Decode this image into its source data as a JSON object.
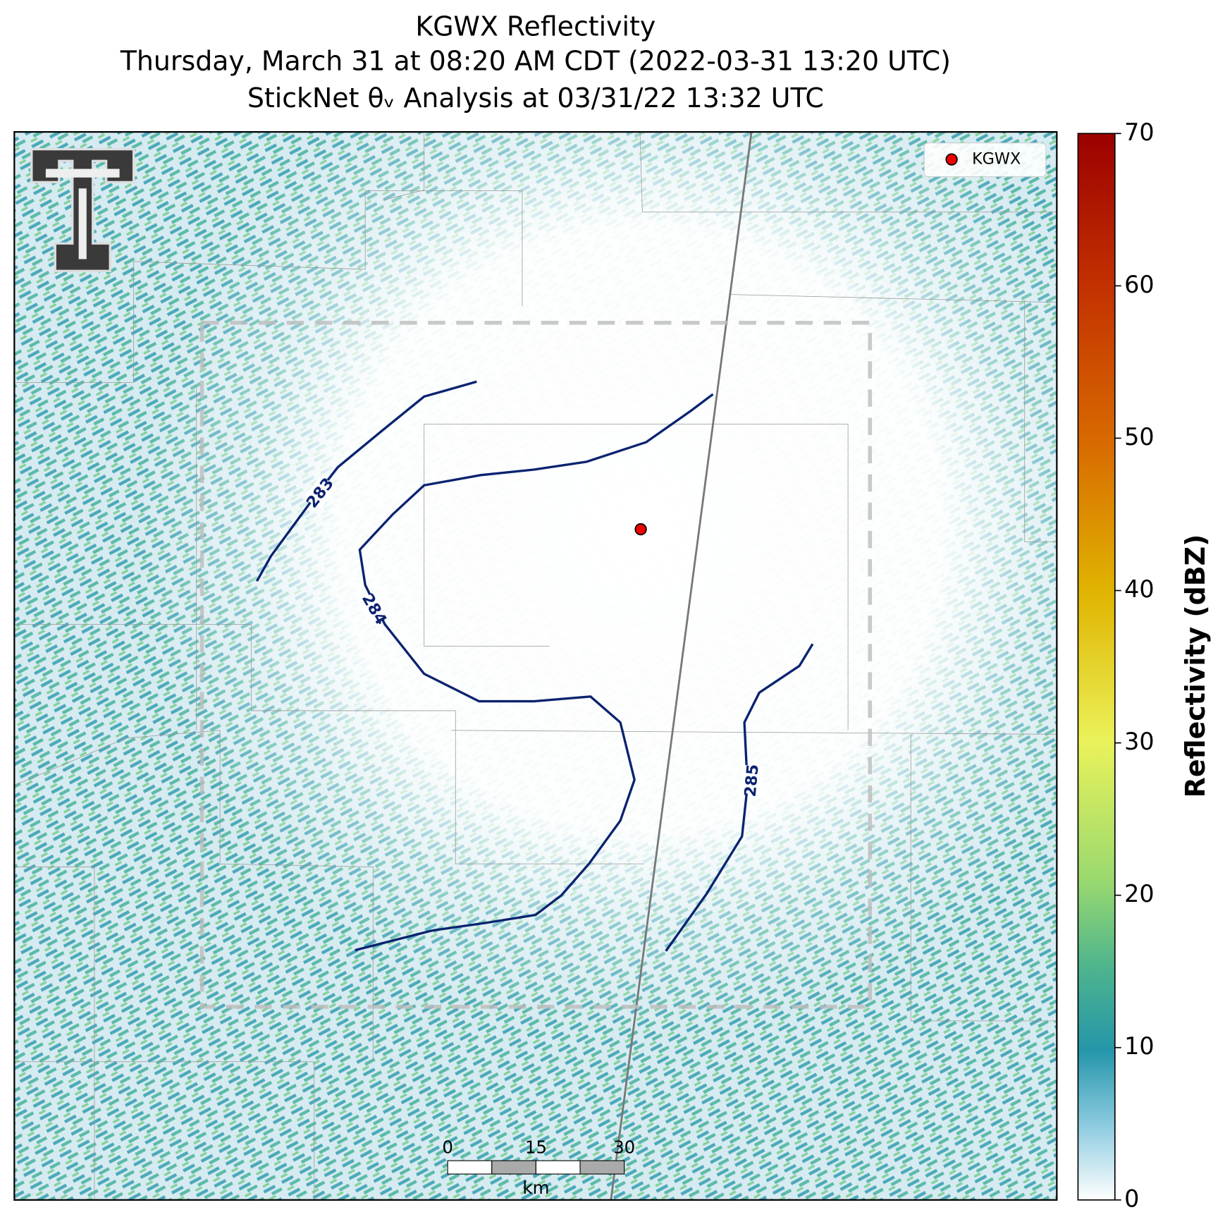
{
  "chart_data": {
    "type": "radar-map",
    "title": [
      "KGWX Reflectivity",
      "Thursday, March 31 at 08:20 AM CDT (2022-03-31 13:20 UTC)",
      "StickNet θᵥ Analysis at 03/31/22 13:32 UTC"
    ],
    "legend": [
      "KGWX"
    ],
    "colorbar": {
      "label": "Reflectivity (dBZ)",
      "lim": [
        0,
        70
      ],
      "ticks": [
        0,
        10,
        20,
        30,
        40,
        50,
        60,
        70
      ]
    },
    "contours": [
      {
        "level": 283
      },
      {
        "level": 284
      },
      {
        "level": 285
      }
    ],
    "scale_bar": {
      "ticks": [
        0,
        15,
        30
      ],
      "unit": "km"
    }
  }
}
